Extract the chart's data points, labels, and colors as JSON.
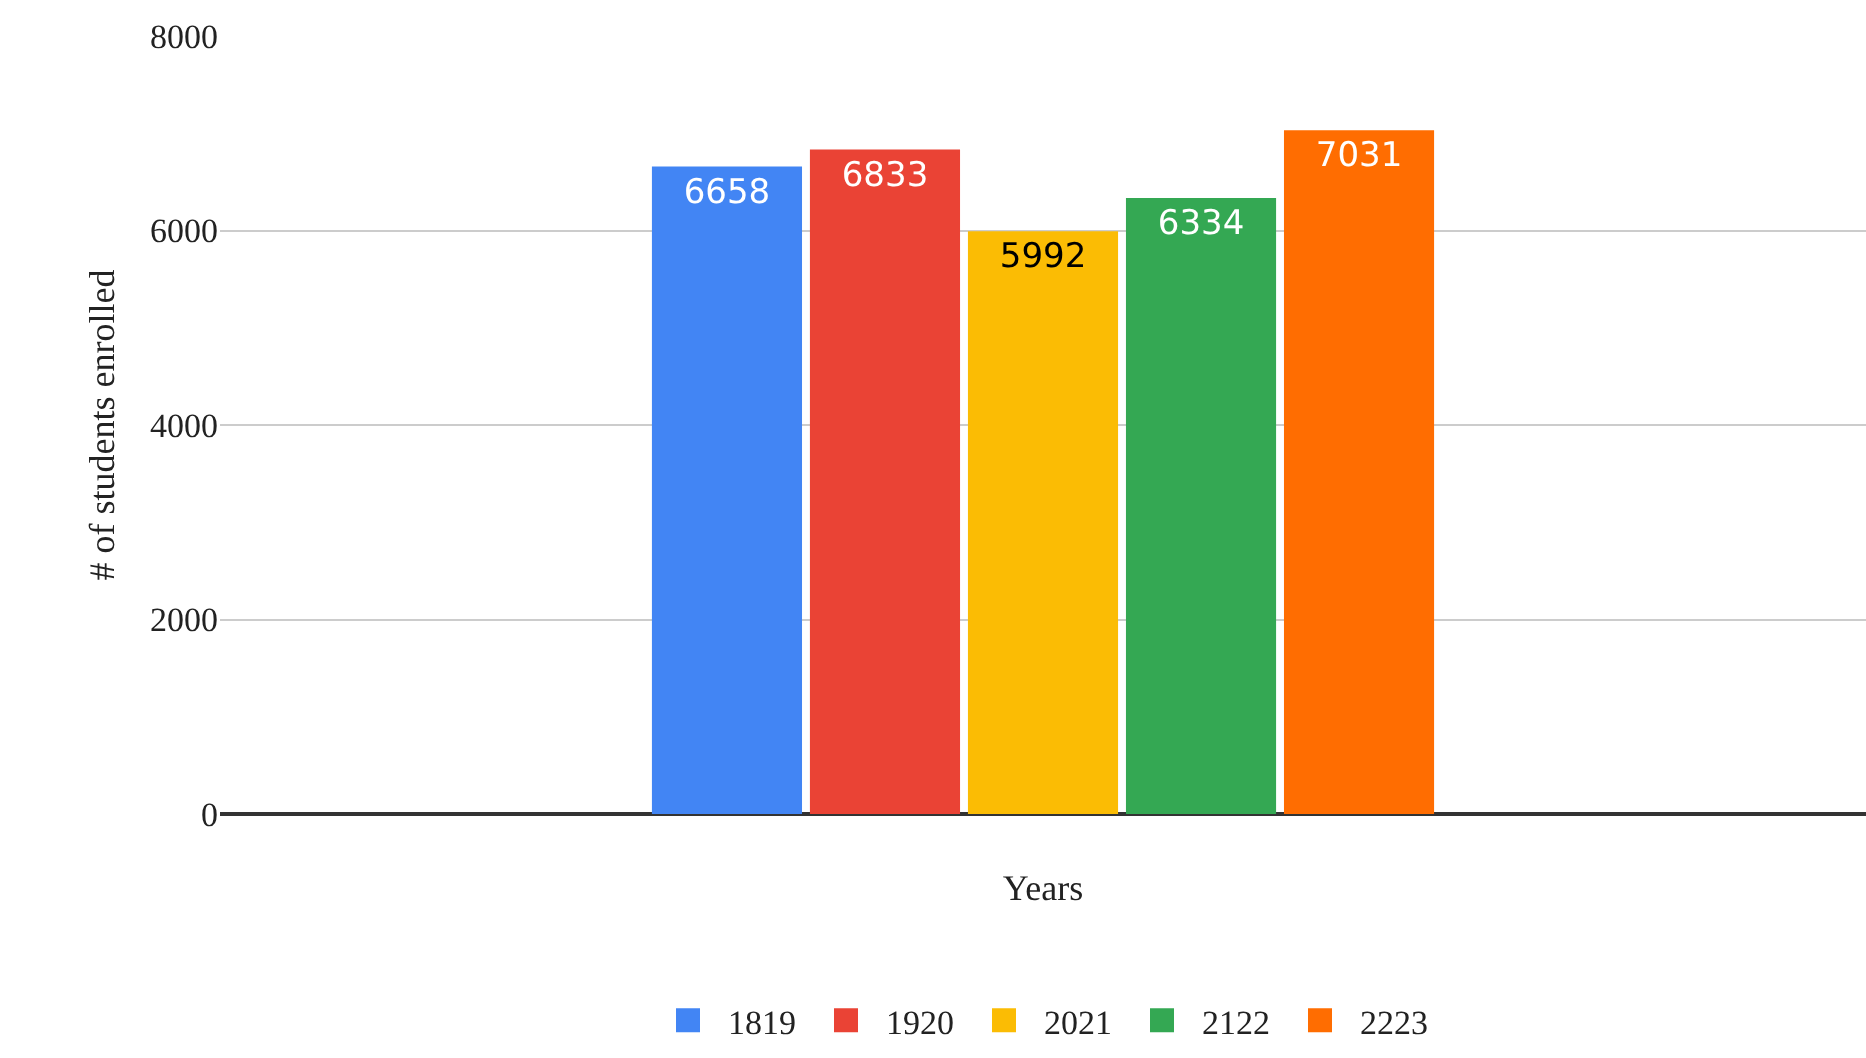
{
  "chart_data": {
    "type": "bar",
    "xlabel": "Years",
    "ylabel": "# of students enrolled",
    "categories": [
      null
    ],
    "series": [
      {
        "name": "1819",
        "color": "#4285f4",
        "values": [
          6658
        ]
      },
      {
        "name": "1920",
        "color": "#ea4335",
        "values": [
          6833
        ]
      },
      {
        "name": "2021",
        "color": "#fbbc04",
        "values": [
          5992
        ]
      },
      {
        "name": "2122",
        "color": "#34a853",
        "values": [
          6334
        ]
      },
      {
        "name": "2223",
        "color": "#ff6d01",
        "values": [
          7031
        ]
      }
    ],
    "ylim": [
      0,
      8000
    ],
    "yticks": [
      0,
      2000,
      4000,
      6000,
      8000
    ],
    "grid": "y",
    "legend": "bottom",
    "data_labels": true
  }
}
